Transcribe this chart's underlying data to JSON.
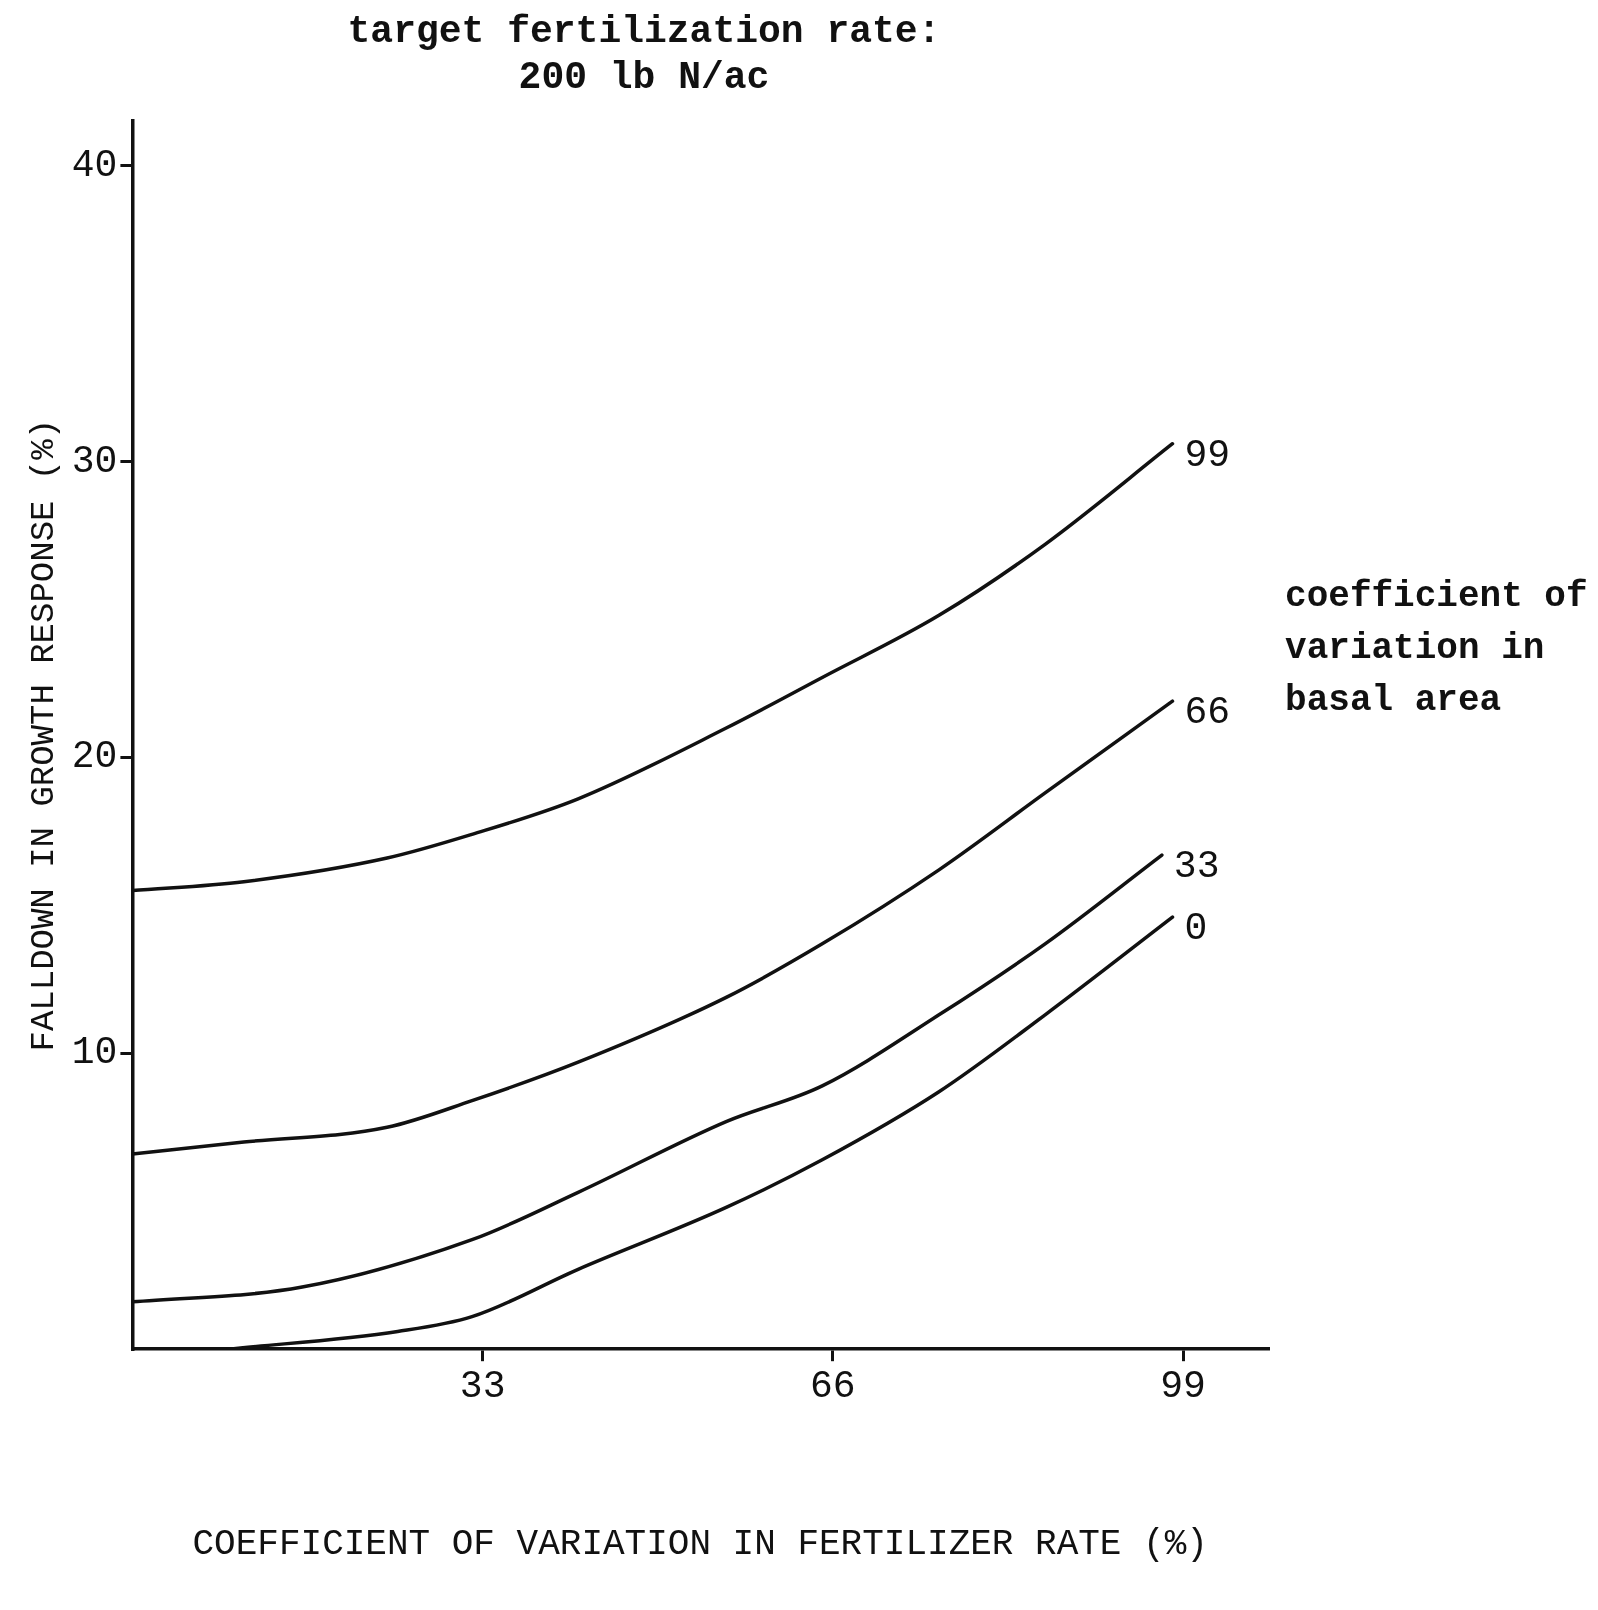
{
  "chart_data": {
    "type": "line",
    "title": "target fertilization rate:\n200 lb N/ac",
    "xlabel": "COEFFICIENT OF VARIATION IN FERTILIZER RATE (%)",
    "ylabel": "FALLDOWN IN GROWTH RESPONSE (%)",
    "legend_title": "coefficient of\nvariation in\nbasal area",
    "xlim": [
      0,
      107
    ],
    "ylim": [
      0,
      41.5
    ],
    "xticks": [
      33,
      66,
      99
    ],
    "yticks": [
      10,
      20,
      30,
      40
    ],
    "grid": false,
    "marker": "none",
    "line_style": "solid",
    "color": "#111111",
    "series": [
      {
        "name": "99",
        "x": [
          0,
          10.5,
          24,
          32,
          42,
          56,
          65,
          76,
          86,
          98
        ],
        "values": [
          15.5,
          15.8,
          16.6,
          17.4,
          18.6,
          21,
          22.7,
          24.8,
          27.2,
          30.6
        ]
      },
      {
        "name": "66",
        "x": [
          0,
          10.5,
          24,
          32,
          42,
          56,
          65,
          76,
          86,
          98
        ],
        "values": [
          6.6,
          7,
          7.5,
          8.4,
          9.7,
          11.9,
          13.7,
          16.2,
          18.8,
          21.9
        ]
      },
      {
        "name": "33",
        "x": [
          0,
          16,
          32,
          42,
          56,
          65,
          76,
          86,
          97
        ],
        "values": [
          1.6,
          2.1,
          3.7,
          5.3,
          7.7,
          8.9,
          11.3,
          13.7,
          16.7
        ]
      },
      {
        "name": "0",
        "x": [
          9,
          25,
          32,
          42,
          56,
          65,
          76,
          86,
          98
        ],
        "values": [
          0,
          0.6,
          1.1,
          2.7,
          4.8,
          6.4,
          8.7,
          11.3,
          14.6
        ]
      }
    ]
  }
}
